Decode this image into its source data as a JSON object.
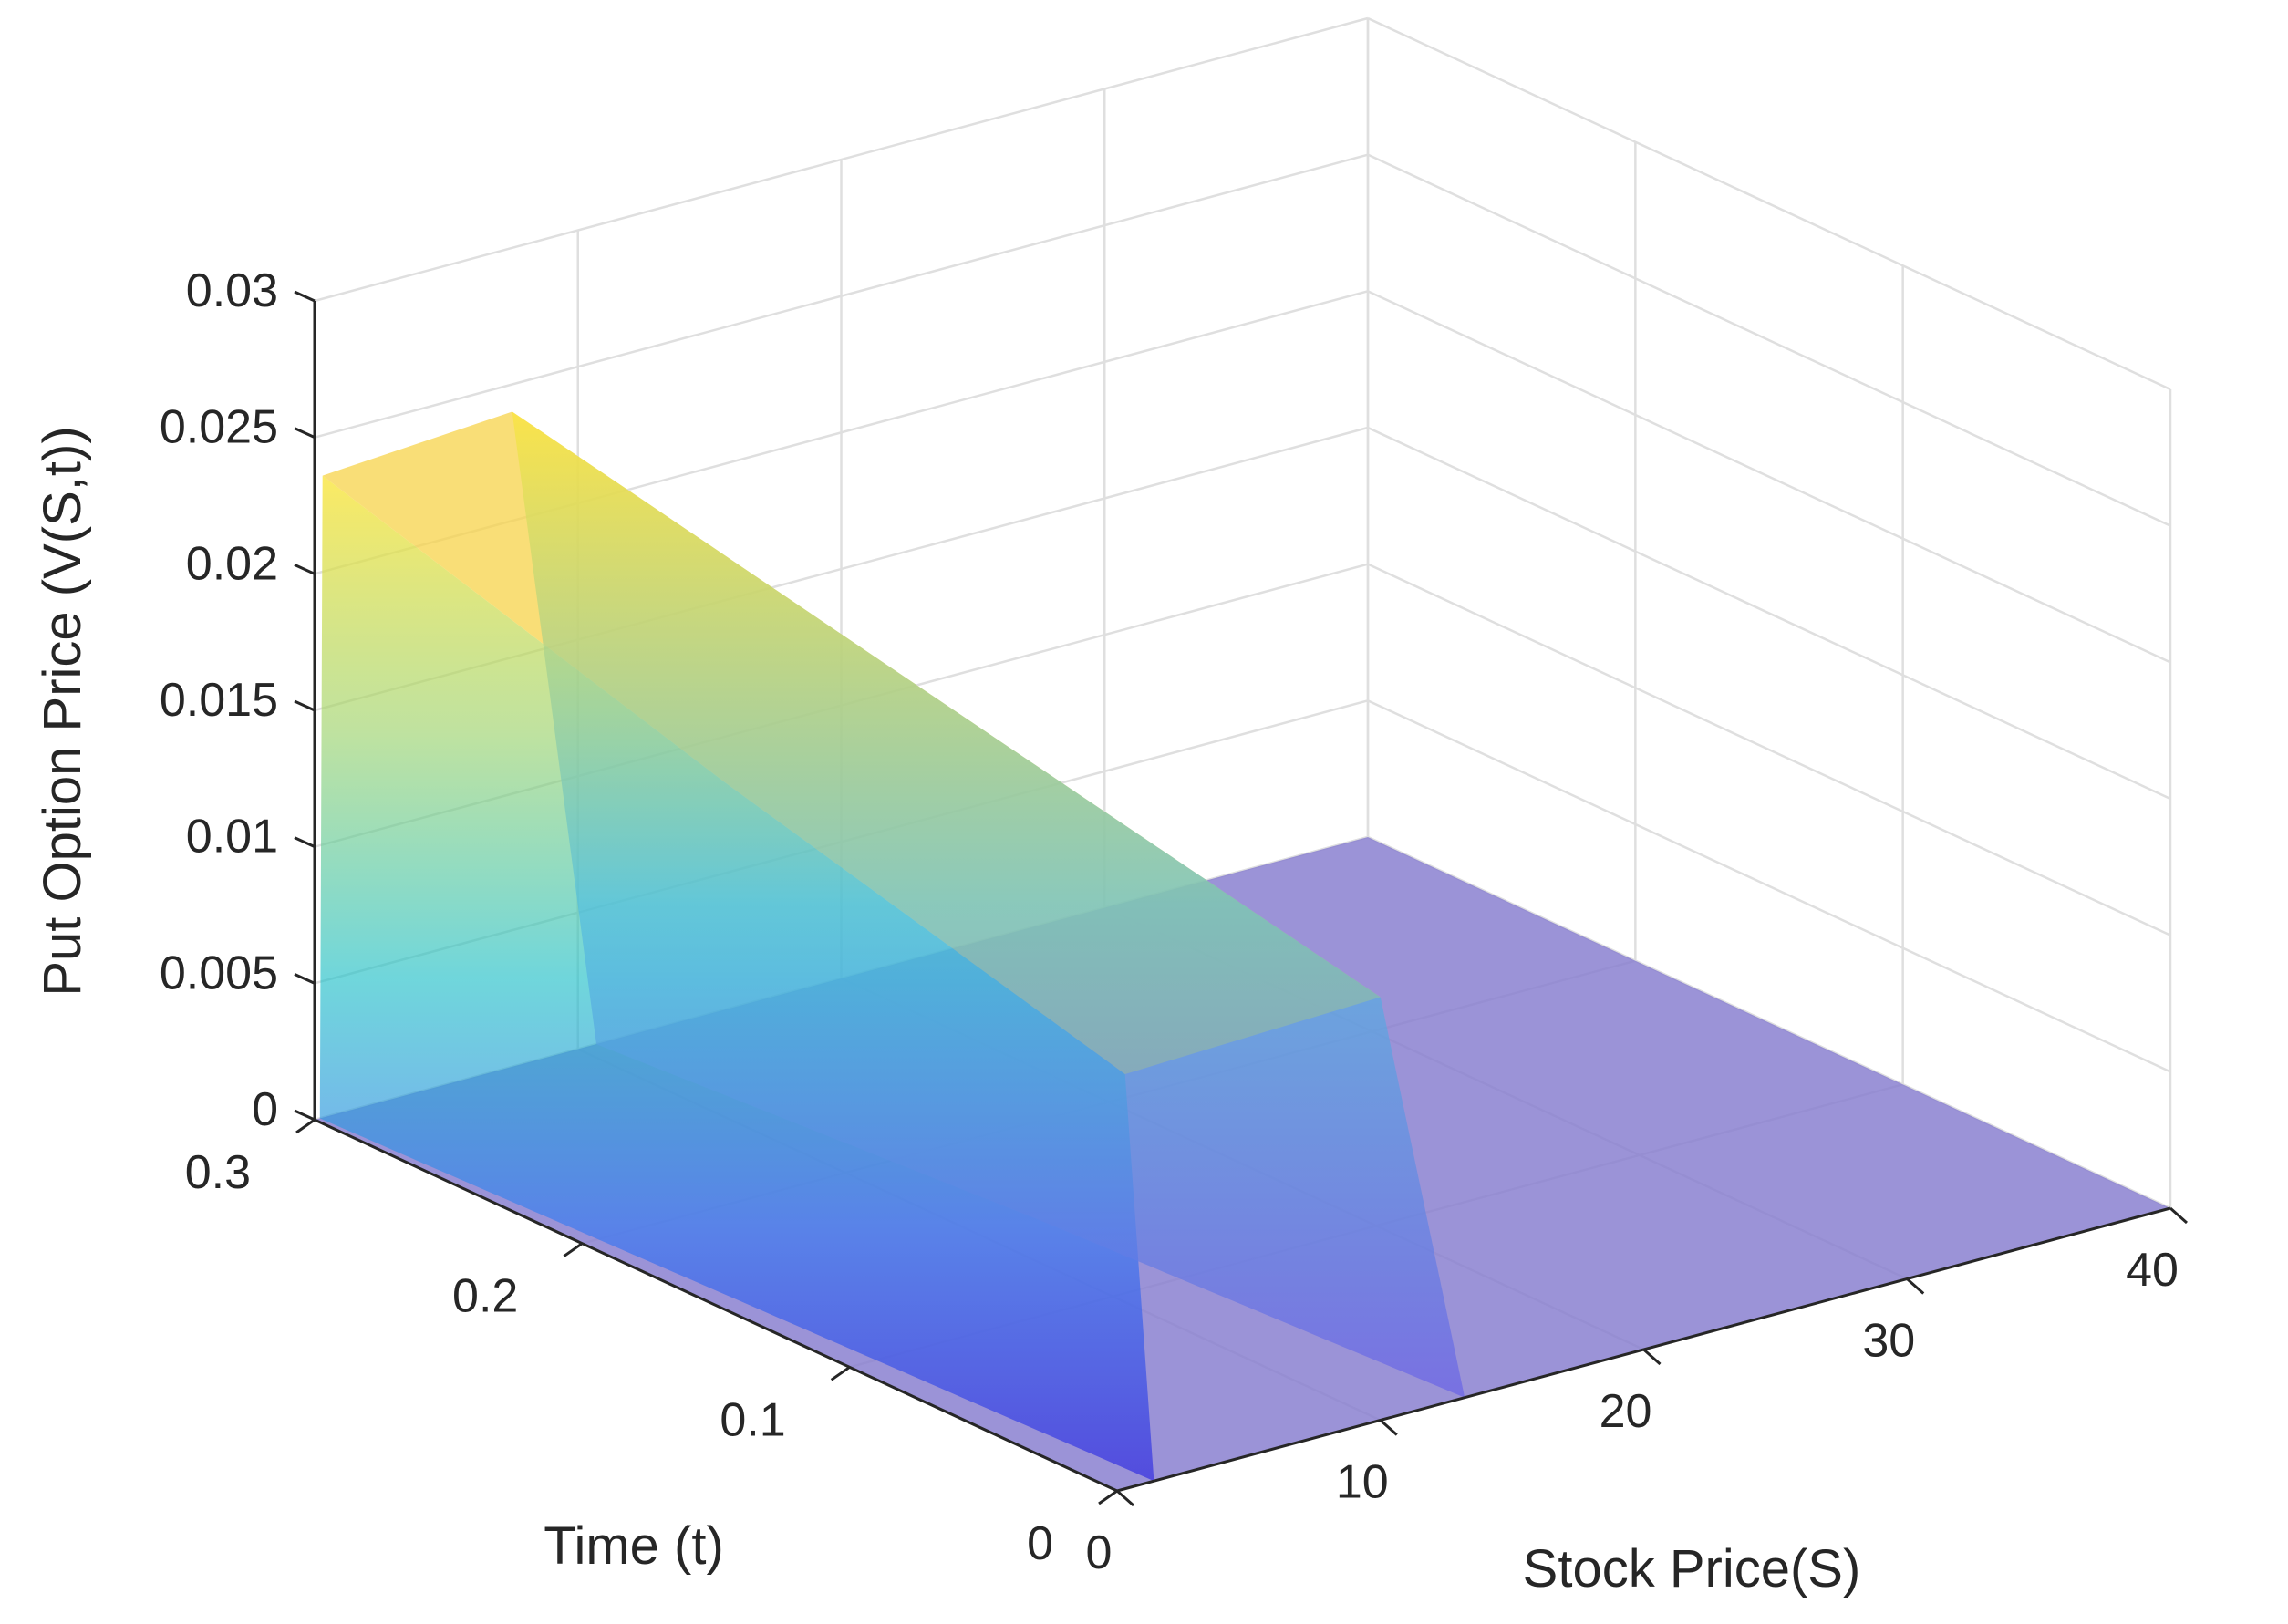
{
  "chart_data": {
    "type": "surface3d",
    "title": "",
    "xlabel": "Stock Price(S)",
    "ylabel": "Time (t)",
    "zlabel": "Put Option Price (V(S,t))",
    "xlim": [
      0,
      40
    ],
    "ylim": [
      0,
      0.3
    ],
    "zlim": [
      0,
      0.03
    ],
    "x_ticks": [
      0,
      10,
      20,
      30,
      40
    ],
    "x_tick_labels": [
      "0",
      "10",
      "20",
      "30",
      "40"
    ],
    "y_ticks": [
      0,
      0.1,
      0.2,
      0.3
    ],
    "y_tick_labels": [
      "0",
      "0.1",
      "0.2",
      "0.3"
    ],
    "z_ticks": [
      0,
      0.005,
      0.01,
      0.015,
      0.02,
      0.025,
      0.03
    ],
    "z_tick_labels": [
      "0",
      "0.005",
      "0.01",
      "0.015",
      "0.02",
      "0.025",
      "0.03"
    ],
    "grid": true,
    "colormap": "parula",
    "surface_alpha": 0.55,
    "surface_description_points": [
      {
        "t": 0.3,
        "S_peak": 7.5,
        "V_peak": 0.024
      },
      {
        "t": 0.15,
        "S_peak": 9,
        "V_peak": 0.0195
      },
      {
        "t": 0.0,
        "S_peak": 10,
        "V_peak": 0.0155
      }
    ],
    "colors": {
      "flat_plane": "#8a80d0",
      "low": "#3d3ce0",
      "mid": "#23b8c8",
      "high": "#f9e83a"
    }
  }
}
